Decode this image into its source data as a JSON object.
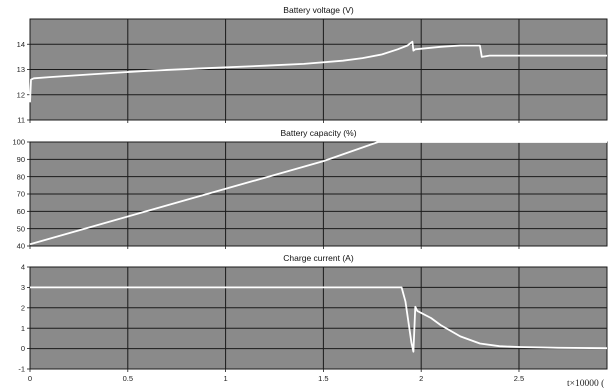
{
  "figure": {
    "xlabel": "t×10000 ("
  },
  "chart_data": [
    {
      "type": "line",
      "title": "Battery voltage (V)",
      "xlim": [
        0,
        2.95
      ],
      "ylim": [
        11,
        15
      ],
      "xticks": [
        "0",
        "0.5",
        "1",
        "1.5",
        "2",
        "2.5"
      ],
      "yticks": [
        "11",
        "12",
        "13",
        "14"
      ],
      "ytick_values": [
        11,
        12,
        13,
        14
      ],
      "grid": true,
      "x": [
        0,
        0.005,
        0.02,
        0.1,
        0.3,
        0.6,
        0.9,
        1.2,
        1.4,
        1.6,
        1.7,
        1.8,
        1.88,
        1.93,
        1.955,
        1.96,
        1.97,
        2.1,
        2.2,
        2.3,
        2.31,
        2.35,
        2.6,
        2.8,
        2.95
      ],
      "values": [
        11.7,
        12.6,
        12.65,
        12.7,
        12.8,
        12.95,
        13.05,
        13.15,
        13.22,
        13.35,
        13.45,
        13.6,
        13.8,
        13.95,
        14.1,
        13.75,
        13.8,
        13.9,
        13.95,
        13.95,
        13.5,
        13.55,
        13.55,
        13.55,
        13.55
      ]
    },
    {
      "type": "line",
      "title": "Battery capacity (%)",
      "xlim": [
        0,
        2.95
      ],
      "ylim": [
        40,
        100
      ],
      "xticks": [],
      "yticks": [
        "40",
        "50",
        "60",
        "70",
        "80",
        "90",
        "100"
      ],
      "ytick_values": [
        40,
        50,
        60,
        70,
        80,
        90,
        100
      ],
      "grid": true,
      "x": [
        0,
        0.5,
        1.0,
        1.5,
        1.78,
        2.0,
        2.5,
        2.95
      ],
      "values": [
        41,
        57,
        73,
        89,
        100,
        100,
        100,
        100
      ]
    },
    {
      "type": "line",
      "title": "Charge current (A)",
      "xlim": [
        0,
        2.95
      ],
      "ylim": [
        -1,
        4
      ],
      "xticks": [
        "0",
        "0.5",
        "1",
        "1.5",
        "2",
        "2.5"
      ],
      "yticks": [
        "-1",
        "0",
        "1",
        "2",
        "3",
        "4"
      ],
      "ytick_values": [
        -1,
        0,
        1,
        2,
        3,
        4
      ],
      "grid": true,
      "x": [
        0,
        1.9,
        1.92,
        1.95,
        1.96,
        1.97,
        1.98,
        2.05,
        2.1,
        2.2,
        2.3,
        2.4,
        2.5,
        2.7,
        2.95
      ],
      "values": [
        3,
        3,
        2.3,
        0.3,
        -0.15,
        2.05,
        1.85,
        1.5,
        1.15,
        0.6,
        0.25,
        0.12,
        0.08,
        0.04,
        0.02
      ]
    }
  ]
}
